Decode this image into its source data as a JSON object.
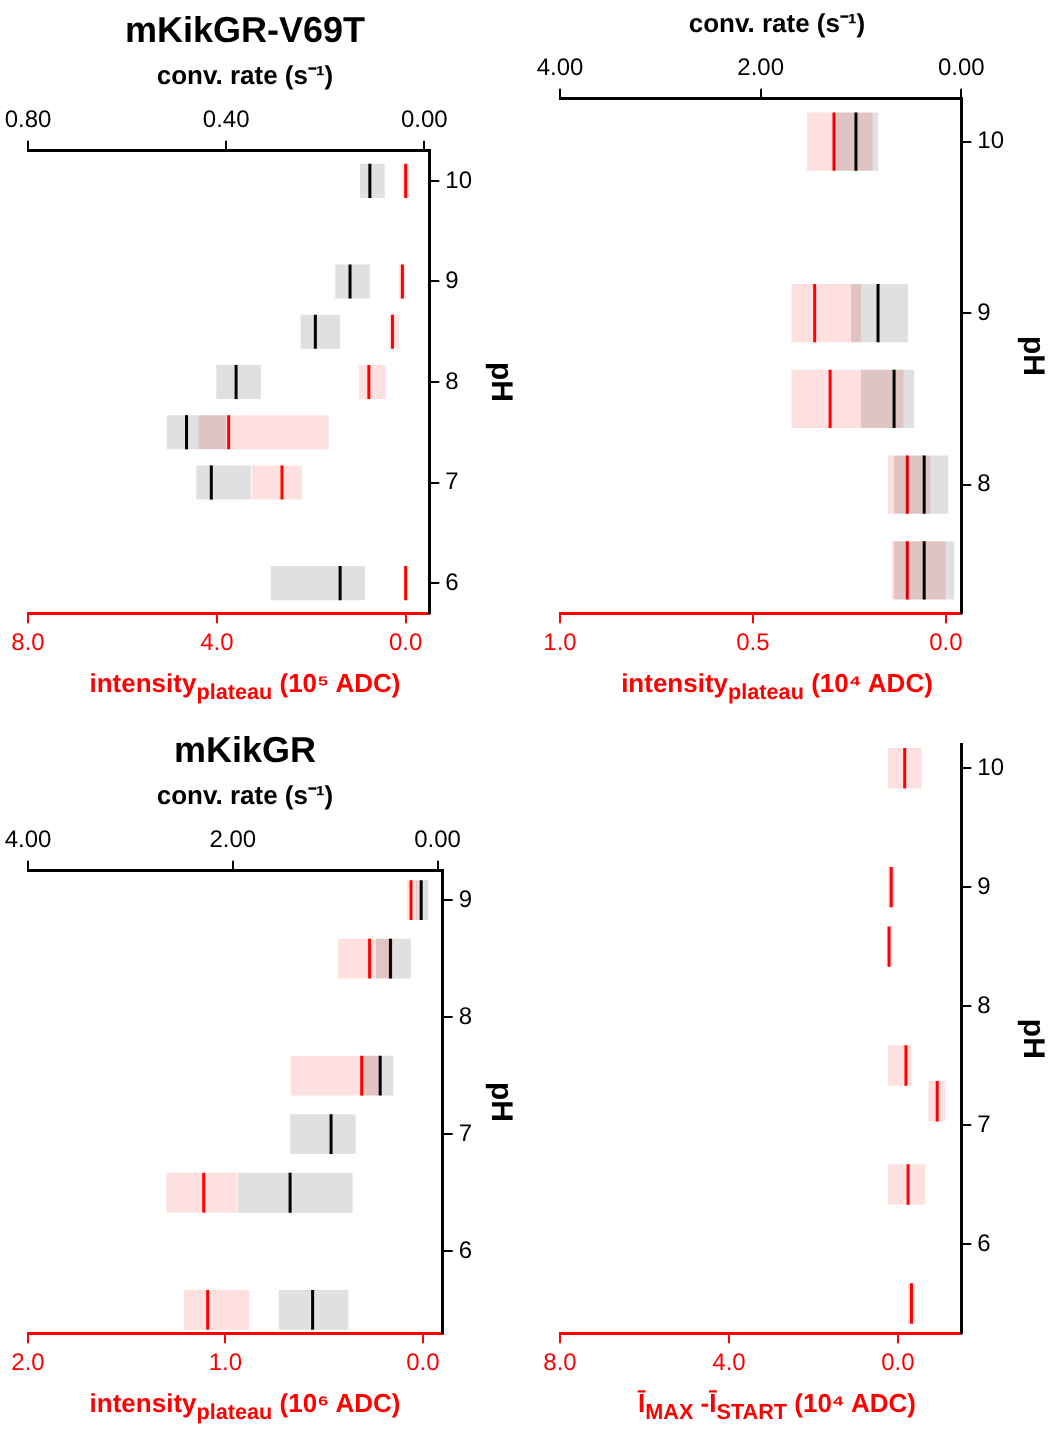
{
  "chart_data": [
    {
      "type": "box",
      "orientation": "horizontal",
      "title": "mKikGR-V69T",
      "ylabel": "pH",
      "xlabel": "intensity$_{plateau}$ (10⁵ ADC)",
      "x2label": "conv. rate (s⁻¹)",
      "ylim": [
        5.7,
        10.3
      ],
      "yticks": [
        6,
        7,
        8,
        9,
        10
      ],
      "xlim": [
        8.0,
        -0.5
      ],
      "xticks": [
        {
          "value": 0,
          "label": "0.0"
        },
        {
          "value": 4,
          "label": "4.0"
        },
        {
          "value": 8,
          "label": "8.0"
        }
      ],
      "x2lim": [
        0.8,
        -0.01
      ],
      "x2ticks": [
        {
          "value": 0,
          "label": "0.00"
        },
        {
          "value": 0.4,
          "label": "0.40"
        },
        {
          "value": 0.8,
          "label": "0.80"
        }
      ],
      "series": [
        {
          "color": "#ff0000",
          "x": [
            6,
            7,
            7.5,
            8,
            8.5,
            9,
            10
          ],
          "boxes": [
            {
              "low": -0.05,
              "q1": -0.05,
              "median": 0,
              "q3": 0.05,
              "high": 0.05
            },
            {
              "low": 2.2,
              "q1": 2.2,
              "median": 2.62,
              "q3": 3.26,
              "high": 3.26
            },
            {
              "low": 1.63,
              "q1": 1.63,
              "median": 3.75,
              "q3": 4.39,
              "high": 4.39
            },
            {
              "low": 0.42,
              "q1": 0.42,
              "median": 0.78,
              "q3": 0.99,
              "high": 0.99
            },
            {
              "low": 0.14,
              "q1": 0.14,
              "median": 0.28,
              "q3": 0.35,
              "high": 0.35
            },
            {
              "low": 0,
              "q1": 0,
              "median": 0.07,
              "q3": 0.14,
              "high": 0.14
            },
            {
              "low": -0.07,
              "q1": -0.07,
              "median": 0,
              "q3": 0.07,
              "high": 0.07
            }
          ]
        },
        {
          "color": "#000000",
          "axis": "x2",
          "x": [
            6,
            7,
            7.5,
            8,
            8.5,
            9,
            10
          ],
          "boxes": [
            {
              "low": 0.12,
              "q1": 0.12,
              "median": 0.17,
              "q3": 0.31,
              "high": 0.31
            },
            {
              "low": 0.35,
              "q1": 0.35,
              "median": 0.43,
              "q3": 0.46,
              "high": 0.46
            },
            {
              "low": 0.4,
              "q1": 0.4,
              "median": 0.48,
              "q3": 0.52,
              "high": 0.52
            },
            {
              "low": 0.33,
              "q1": 0.33,
              "median": 0.38,
              "q3": 0.42,
              "high": 0.42
            },
            {
              "low": 0.17,
              "q1": 0.17,
              "median": 0.22,
              "q3": 0.25,
              "high": 0.25
            },
            {
              "low": 0.11,
              "q1": 0.11,
              "median": 0.15,
              "q3": 0.18,
              "high": 0.18
            },
            {
              "low": 0.08,
              "q1": 0.08,
              "median": 0.11,
              "q3": 0.13,
              "high": 0.13
            }
          ]
        }
      ]
    },
    {
      "type": "box",
      "orientation": "horizontal",
      "ylabel": "pH",
      "xlabel": "intensity$_{plateau}$ (10⁴ ADC)",
      "x2label": "conv. rate (s⁻¹)",
      "ylim": [
        7.25,
        10.25
      ],
      "yticks": [
        8,
        9,
        10
      ],
      "xlim": [
        1.0,
        -0.04
      ],
      "xticks": [
        {
          "value": 0,
          "label": "0.0"
        },
        {
          "value": 0.5,
          "label": "0.5"
        },
        {
          "value": 1,
          "label": "1.0"
        }
      ],
      "x2lim": [
        4,
        0
      ],
      "x2ticks": [
        {
          "value": 0,
          "label": "0.00"
        },
        {
          "value": 2,
          "label": "2.00"
        },
        {
          "value": 4,
          "label": "4.00"
        }
      ],
      "series": [
        {
          "color": "#ff0000",
          "x": [
            7.5,
            8,
            8.5,
            9,
            10
          ],
          "boxes": [
            {
              "low": 0,
              "q1": 0,
              "median": 0.1,
              "q3": 0.14,
              "high": 0.14
            },
            {
              "low": 0.04,
              "q1": 0.04,
              "median": 0.1,
              "q3": 0.15,
              "high": 0.15
            },
            {
              "low": 0.11,
              "q1": 0.11,
              "median": 0.3,
              "q3": 0.4,
              "high": 0.4
            },
            {
              "low": 0.22,
              "q1": 0.22,
              "median": 0.34,
              "q3": 0.4,
              "high": 0.4
            },
            {
              "low": 0.19,
              "q1": 0.19,
              "median": 0.29,
              "q3": 0.36,
              "high": 0.36
            }
          ]
        },
        {
          "color": "#000000",
          "axis": "x2",
          "x": [
            7.5,
            8,
            8.5,
            9,
            10
          ],
          "boxes": [
            {
              "low": 0.07,
              "q1": 0.07,
              "median": 0.37,
              "q3": 0.67,
              "high": 0.67
            },
            {
              "low": 0.13,
              "q1": 0.13,
              "median": 0.37,
              "q3": 0.67,
              "high": 0.67
            },
            {
              "low": 0.47,
              "q1": 0.47,
              "median": 0.67,
              "q3": 1.0,
              "high": 1.0
            },
            {
              "low": 0.53,
              "q1": 0.53,
              "median": 0.83,
              "q3": 1.1,
              "high": 1.1
            },
            {
              "low": 0.83,
              "q1": 0.83,
              "median": 1.05,
              "q3": 1.27,
              "high": 1.27
            }
          ]
        }
      ]
    },
    {
      "type": "box",
      "orientation": "horizontal",
      "title": "mKikGR",
      "ylabel": "pH",
      "xlabel": "intensity$_{plateau}$ (10⁶ ADC)",
      "x2label": "conv. rate (s⁻¹)",
      "ylim": [
        5.3,
        9.25
      ],
      "yticks": [
        6,
        7,
        8,
        9
      ],
      "xlim": [
        2.0,
        -0.1
      ],
      "xticks": [
        {
          "value": 0,
          "label": "0.0"
        },
        {
          "value": 1,
          "label": "1.0"
        },
        {
          "value": 2,
          "label": "2.0"
        }
      ],
      "x2lim": [
        4.0,
        -0.05
      ],
      "x2ticks": [
        {
          "value": 0,
          "label": "0.00"
        },
        {
          "value": 2,
          "label": "2.00"
        },
        {
          "value": 4,
          "label": "4.00"
        }
      ],
      "series": [
        {
          "color": "#ff0000",
          "x": [
            5.5,
            6.5,
            7.5,
            8.5,
            9.0
          ],
          "boxes": [
            {
              "low": 0.88,
              "q1": 0.88,
              "median": 1.09,
              "q3": 1.21,
              "high": 1.21
            },
            {
              "low": 0.94,
              "q1": 0.94,
              "median": 1.11,
              "q3": 1.3,
              "high": 1.3
            },
            {
              "low": 0.22,
              "q1": 0.22,
              "median": 0.31,
              "q3": 0.67,
              "high": 0.67
            },
            {
              "low": 0.15,
              "q1": 0.15,
              "median": 0.27,
              "q3": 0.43,
              "high": 0.43
            },
            {
              "low": 0.03,
              "q1": 0.03,
              "median": 0.06,
              "q3": 0.08,
              "high": 0.08
            }
          ]
        },
        {
          "color": "#000000",
          "axis": "x2",
          "x": [
            5.5,
            6.5,
            7.0,
            7.5,
            8.5,
            9.0
          ],
          "boxes": [
            {
              "low": 0.87,
              "q1": 0.87,
              "median": 1.22,
              "q3": 1.55,
              "high": 1.55
            },
            {
              "low": 0.83,
              "q1": 0.83,
              "median": 1.44,
              "q3": 1.95,
              "high": 1.95
            },
            {
              "low": 0.8,
              "q1": 0.8,
              "median": 1.04,
              "q3": 1.44,
              "high": 1.44
            },
            {
              "low": 0.43,
              "q1": 0.43,
              "median": 0.56,
              "q3": 0.73,
              "high": 0.73
            },
            {
              "low": 0.26,
              "q1": 0.26,
              "median": 0.46,
              "q3": 0.6,
              "high": 0.6
            },
            {
              "low": 0.09,
              "q1": 0.09,
              "median": 0.16,
              "q3": 0.21,
              "high": 0.21
            }
          ]
        }
      ]
    },
    {
      "type": "box",
      "orientation": "horizontal",
      "ylabel": "pH",
      "xlabel": "Ī$_{MAX}$ -Ī$_{START}$ (10⁴ ADC)",
      "ylim": [
        5.25,
        10.2
      ],
      "yticks": [
        6,
        7,
        8,
        9,
        10
      ],
      "xlim": [
        8.0,
        -1.5
      ],
      "xticks": [
        {
          "value": 0,
          "label": "0.0"
        },
        {
          "value": 4,
          "label": "4.0"
        },
        {
          "value": 8,
          "label": "8.0"
        }
      ],
      "series": [
        {
          "color": "#ff0000",
          "x": [
            5.5,
            6.5,
            7.2,
            7.5,
            8.5,
            9,
            10
          ],
          "boxes": [
            {
              "low": -0.4,
              "q1": -0.4,
              "median": -0.32,
              "q3": -0.24,
              "high": -0.24
            },
            {
              "low": -0.64,
              "q1": -0.64,
              "median": -0.24,
              "q3": 0.24,
              "high": 0.24
            },
            {
              "low": -1.12,
              "q1": -1.12,
              "median": -0.93,
              "q3": -0.72,
              "high": -0.72
            },
            {
              "low": -0.32,
              "q1": -0.32,
              "median": -0.19,
              "q3": 0.24,
              "high": 0.24
            },
            {
              "low": 0.14,
              "q1": 0.14,
              "median": 0.21,
              "q3": 0.27,
              "high": 0.27
            },
            {
              "low": 0.08,
              "q1": 0.08,
              "median": 0.16,
              "q3": 0.24,
              "high": 0.24
            },
            {
              "low": -0.56,
              "q1": -0.56,
              "median": -0.16,
              "q3": 0.24,
              "high": 0.24
            }
          ]
        }
      ]
    }
  ]
}
